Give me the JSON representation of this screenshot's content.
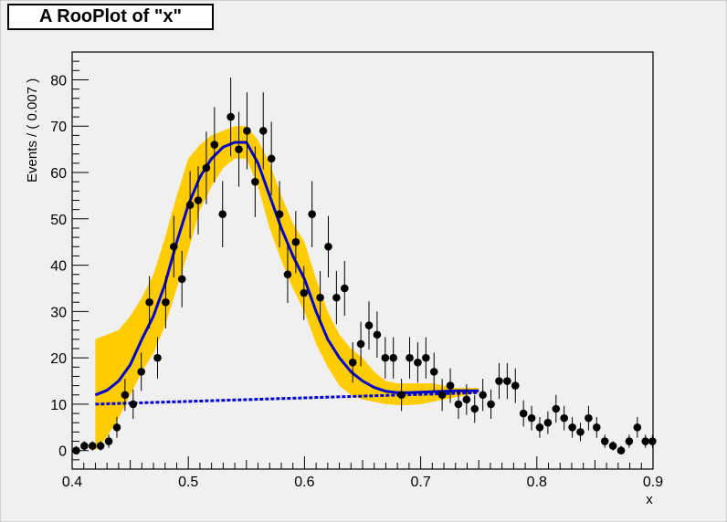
{
  "chart_data": {
    "type": "scatter",
    "title": "A RooPlot of \"x\"",
    "xlabel": "x",
    "ylabel": "Events / ( 0.007 )",
    "xlim": [
      0.4,
      0.9
    ],
    "ylim": [
      -4,
      86
    ],
    "x_ticks": [
      0.4,
      0.5,
      0.6,
      0.7,
      0.8,
      0.9
    ],
    "x_tick_labels": [
      "0.4",
      "0.5",
      "0.6",
      "0.7",
      "0.8",
      "0.9"
    ],
    "y_ticks": [
      0,
      10,
      20,
      30,
      40,
      50,
      60,
      70,
      80
    ],
    "y_tick_labels": [
      "0",
      "10",
      "20",
      "30",
      "40",
      "50",
      "60",
      "70",
      "80"
    ],
    "grid": false,
    "colors": {
      "data": "#000000",
      "fit": "#0000cc",
      "background": "#0000cc",
      "band": "#ffcc00",
      "frame_bg": "#f0f0f0"
    },
    "series": [
      {
        "type": "data-points-with-error-bars",
        "x": [
          0.4035,
          0.4105,
          0.4175,
          0.4245,
          0.4315,
          0.4385,
          0.4455,
          0.4525,
          0.4595,
          0.4665,
          0.4735,
          0.4805,
          0.4875,
          0.4945,
          0.5015,
          0.5085,
          0.5155,
          0.5225,
          0.5295,
          0.5365,
          0.5435,
          0.5505,
          0.5575,
          0.5645,
          0.5715,
          0.5785,
          0.5855,
          0.5925,
          0.5995,
          0.6065,
          0.6135,
          0.6205,
          0.6275,
          0.6345,
          0.6415,
          0.6485,
          0.6555,
          0.6625,
          0.6695,
          0.6765,
          0.6835,
          0.6905,
          0.6975,
          0.7045,
          0.7115,
          0.7185,
          0.7255,
          0.7325,
          0.7395,
          0.7465,
          0.7535,
          0.7605,
          0.7675,
          0.7745,
          0.7815,
          0.7885,
          0.7955,
          0.8025,
          0.8095,
          0.8165,
          0.8235,
          0.8305,
          0.8375,
          0.8445,
          0.8515,
          0.8585,
          0.8655,
          0.8725,
          0.8795,
          0.8865,
          0.8935,
          0.8995
        ],
        "y": [
          0,
          1,
          1,
          1,
          2,
          5,
          12,
          10,
          17,
          32,
          20,
          32,
          44,
          37,
          53,
          54,
          61,
          66,
          51,
          72,
          65,
          69,
          58,
          69,
          63,
          51,
          38,
          45,
          34,
          51,
          33,
          44,
          33,
          35,
          19,
          23,
          27,
          25,
          20,
          20,
          12,
          20,
          19,
          20,
          17,
          12,
          14,
          10,
          11,
          9,
          12,
          10,
          15,
          15,
          14,
          8,
          7,
          5,
          6,
          9,
          7,
          5,
          4,
          7,
          5,
          2,
          1,
          0,
          2,
          5,
          2,
          2
        ],
        "error_bars": "symmetric (Poisson, sqrt(N))"
      },
      {
        "type": "line",
        "name": "",
        "x": [
          0.42,
          0.43,
          0.44,
          0.45,
          0.46,
          0.47,
          0.48,
          0.49,
          0.5,
          0.51,
          0.52,
          0.53,
          0.54,
          0.55,
          0.56,
          0.57,
          0.58,
          0.59,
          0.6,
          0.61,
          0.62,
          0.63,
          0.64,
          0.65,
          0.66,
          0.67,
          0.68,
          0.69,
          0.7,
          0.71,
          0.72,
          0.73,
          0.74,
          0.75
        ],
        "y": [
          12,
          13,
          15,
          18.5,
          24,
          29,
          36,
          45,
          53,
          59,
          63,
          65.5,
          66.5,
          66.5,
          62,
          55,
          48,
          42,
          37,
          30,
          24,
          20,
          17,
          15,
          13.6,
          12.8,
          12.5,
          12.5,
          12.6,
          12.7,
          12.8,
          12.9,
          12.9,
          12.9
        ],
        "band_low": [
          0,
          3,
          7,
          12,
          17,
          21,
          27,
          35,
          43,
          52,
          57,
          61,
          63,
          63,
          57,
          48,
          41,
          35,
          30,
          23,
          18,
          14,
          12,
          11,
          10.5,
          10,
          9.8,
          9.8,
          10,
          10.5,
          11,
          11.5,
          12,
          12.5
        ],
        "band_high": [
          24,
          25,
          26,
          29,
          33,
          38,
          46,
          55,
          63,
          66,
          68,
          69,
          70,
          70,
          67,
          62,
          55,
          49,
          45,
          37,
          30,
          25,
          22,
          20,
          17,
          15,
          14.5,
          14.5,
          14.5,
          14.5,
          14,
          13.5,
          13.5,
          13.5
        ]
      },
      {
        "type": "line",
        "name": "",
        "style": "dashed",
        "x": [
          0.42,
          0.75
        ],
        "y": [
          10,
          12.5
        ]
      }
    ]
  }
}
